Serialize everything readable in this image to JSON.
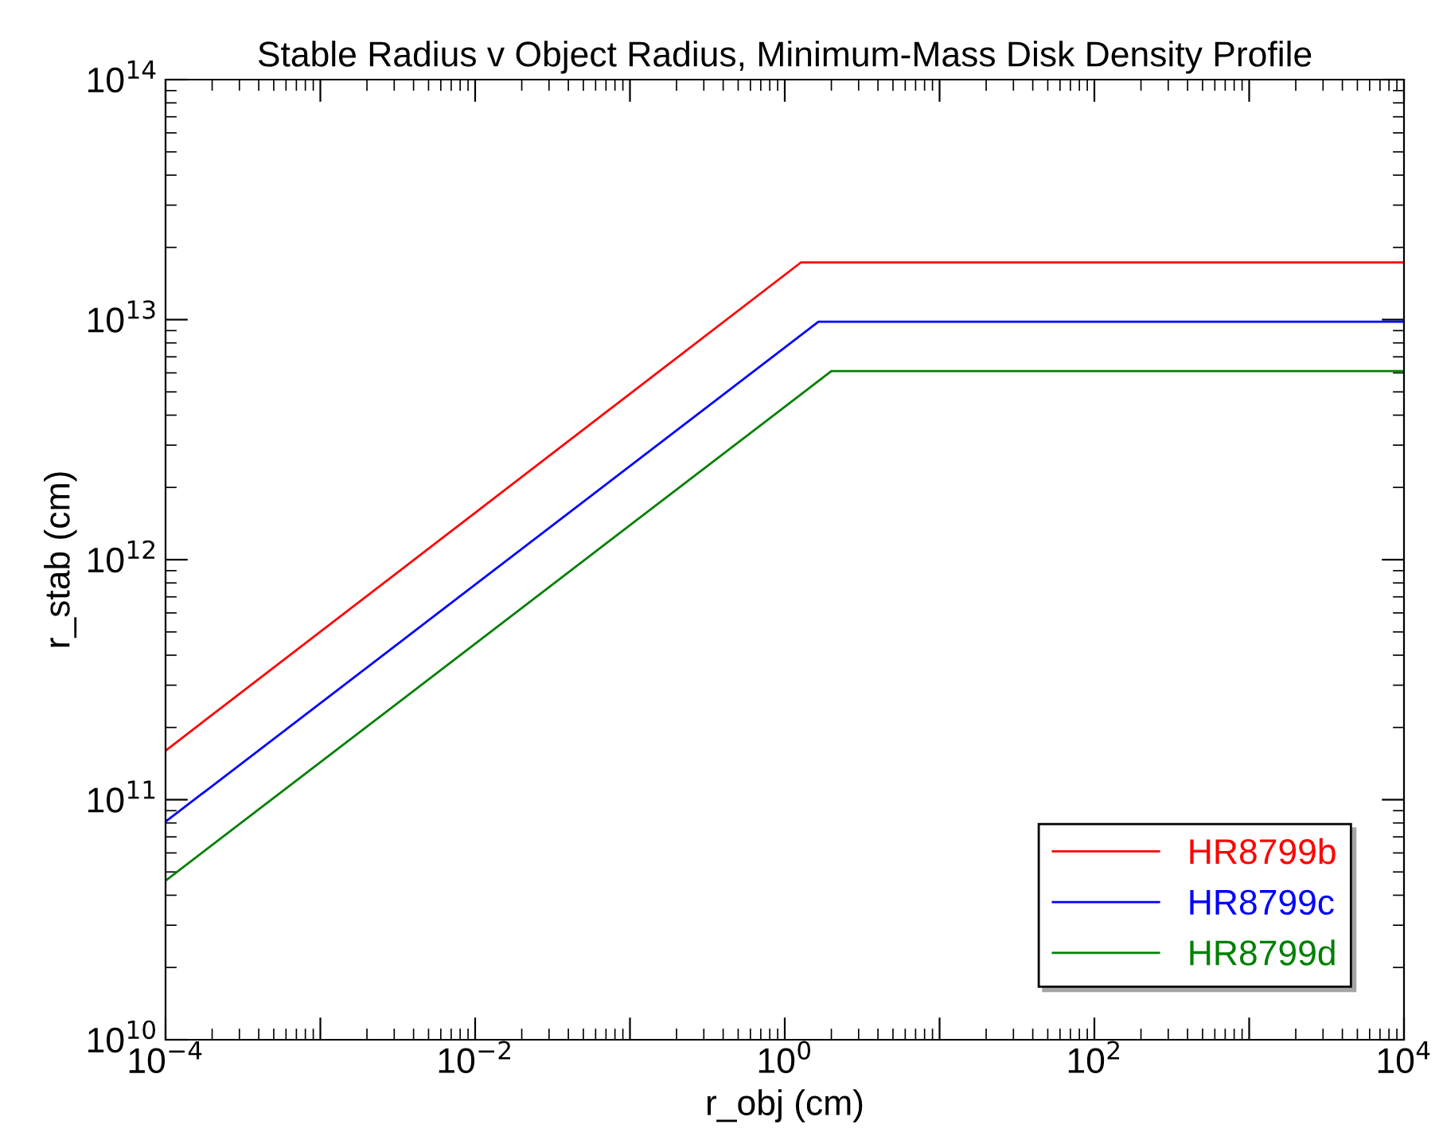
{
  "chart_data": {
    "type": "line",
    "title": "Stable Radius v Object Radius, Minimum-Mass Disk Density Profile",
    "xlabel": "r_obj (cm)",
    "ylabel": "r_stab (cm)",
    "log": "xy",
    "xlim": [
      0.0001,
      10000
    ],
    "ylim": [
      10000000000.0,
      100000000000000.0
    ],
    "xticks": [
      {
        "value": 0.0001,
        "label": "10$^{−4}$"
      },
      {
        "value": 0.001,
        "label": null
      },
      {
        "value": 0.01,
        "label": "10$^{−2}$"
      },
      {
        "value": 0.1,
        "label": null
      },
      {
        "value": 1,
        "label": "10$^{0}$"
      },
      {
        "value": 10,
        "label": null
      },
      {
        "value": 100,
        "label": "10$^{2}$"
      },
      {
        "value": 1000,
        "label": null
      },
      {
        "value": 10000,
        "label": "10$^{4}$"
      }
    ],
    "yticks": [
      {
        "value": 10000000000.0,
        "label": "10$^{10}$"
      },
      {
        "value": 100000000000.0,
        "label": "10$^{11}$"
      },
      {
        "value": 1000000000000.0,
        "label": "10$^{12}$"
      },
      {
        "value": 10000000000000.0,
        "label": "10$^{13}$"
      },
      {
        "value": 100000000000000.0,
        "label": "10$^{14}$"
      }
    ],
    "grid": false,
    "legend": "bottom right",
    "marker": "none",
    "line_style": "solid",
    "series": [
      {
        "name": "HR8799b",
        "color": "#ff0000",
        "x": [
          0.0001,
          1.27,
          10000
        ],
        "values": [
          160000000000.0,
          17300000000000.0,
          17300000000000.0
        ]
      },
      {
        "name": "HR8799c",
        "color": "#0000ff",
        "x": [
          0.0001,
          1.65,
          10000
        ],
        "values": [
          81000000000.0,
          9800000000000.0,
          9800000000000.0
        ]
      },
      {
        "name": "HR8799d",
        "color": "#008000",
        "x": [
          0.0001,
          2.0,
          10000
        ],
        "values": [
          46000000000.0,
          6100000000000.0,
          6100000000000.0
        ]
      }
    ]
  }
}
